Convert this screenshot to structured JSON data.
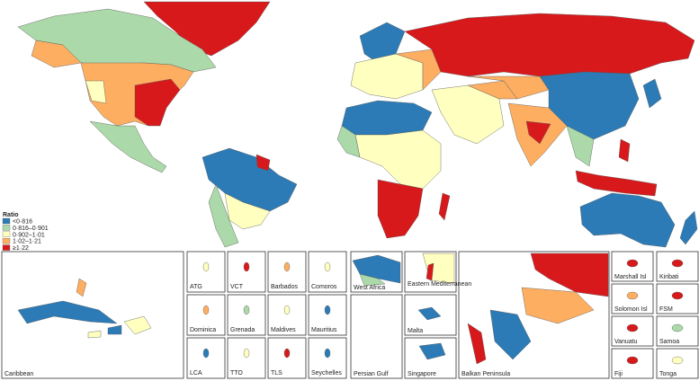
{
  "legend": {
    "title": "Ratio",
    "items": [
      {
        "label": "<0·816",
        "color": "#2c7bb6"
      },
      {
        "label": "0·816–0·901",
        "color": "#abd9a9"
      },
      {
        "label": "0·902–1·01",
        "color": "#ffffbf"
      },
      {
        "label": "1·02–1·21",
        "color": "#fdae61"
      },
      {
        "label": "≥1·22",
        "color": "#d7191c"
      }
    ]
  },
  "insets": [
    "Caribbean",
    "ATG",
    "VCT",
    "Barbados",
    "Comoros",
    "Dominica",
    "Grenada",
    "Maldives",
    "Mauritius",
    "LCA",
    "TTO",
    "TLS",
    "Seychelles",
    "West Africa",
    "Eastern Mediterranean",
    "Persian Gulf",
    "Malta",
    "Singapore",
    "Balkan Peninsula",
    "Marshall Isl",
    "Kiribati",
    "Solomon Isl",
    "FSM",
    "Vanuatu",
    "Samoa",
    "Fiji",
    "Tonga"
  ]
}
